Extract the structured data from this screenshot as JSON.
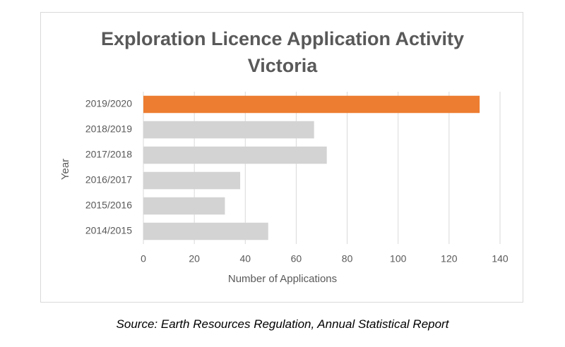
{
  "chart_data": {
    "type": "barh",
    "title": "Exploration Licence Application Activity Victoria",
    "categories": [
      "2019/2020",
      "2018/2019",
      "2017/2018",
      "2016/2017",
      "2015/2016",
      "2014/2015"
    ],
    "values": [
      132,
      67,
      72,
      38,
      32,
      49
    ],
    "colors": [
      "#ed7d31",
      "#d3d3d3",
      "#d3d3d3",
      "#d3d3d3",
      "#d3d3d3",
      "#d3d3d3"
    ],
    "xlim": [
      0,
      140
    ],
    "xticks": [
      0,
      20,
      40,
      60,
      80,
      100,
      120,
      140
    ],
    "xlabel": "Number of Applications",
    "ylabel": "Year",
    "grid": true
  },
  "source": "Source: Earth Resources Regulation, Annual Statistical Report"
}
